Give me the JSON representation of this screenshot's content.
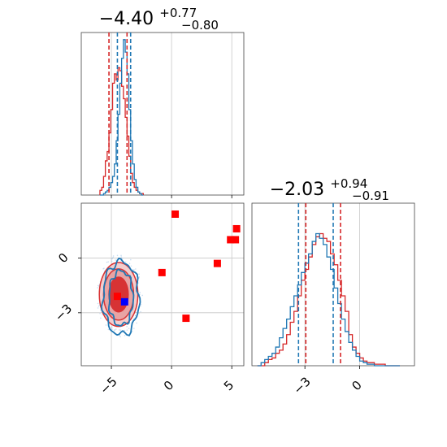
{
  "chart_data": {
    "type": "corner",
    "colors": {
      "red": "#d62728",
      "blue": "#1f77b4",
      "red_fill": "#e8a0a0",
      "pink": "#f3cccc",
      "blue_marker": "#0000ff",
      "red_marker": "#ff0000"
    },
    "grid": true,
    "parameters": [
      {
        "title_main": "−4.40",
        "title_sup": "+0.77",
        "title_sub": "−0.80",
        "range": [
          -7.5,
          6.0
        ],
        "ticks": [
          -5,
          0,
          5
        ],
        "tick_labels": [
          "−5",
          "0",
          "5"
        ],
        "quantiles": {
          "red": [
            -5.2,
            -3.7
          ],
          "blue": [
            -4.5,
            -3.4
          ]
        },
        "hist_bins": [
          -5.95,
          -5.8,
          -5.65,
          -5.5,
          -5.35,
          -5.2,
          -5.05,
          -4.9,
          -4.75,
          -4.6,
          -4.45,
          -4.3,
          -4.15,
          -4.0,
          -3.85,
          -3.7,
          -3.55,
          -3.4,
          -3.25,
          -3.1,
          -2.95,
          -2.8,
          -2.65,
          -2.5,
          -2.35
        ],
        "hist_red": [
          0.03,
          0.05,
          0.12,
          0.22,
          0.28,
          0.4,
          0.55,
          0.72,
          0.78,
          0.74,
          0.82,
          0.8,
          0.7,
          0.62,
          0.5,
          0.38,
          0.25,
          0.14,
          0.08,
          0.05,
          0.03,
          0.02,
          0.01,
          0.01
        ],
        "hist_blue": [
          0.0,
          0.0,
          0.01,
          0.02,
          0.03,
          0.05,
          0.08,
          0.12,
          0.2,
          0.35,
          0.52,
          0.72,
          0.88,
          1.0,
          0.92,
          0.78,
          0.55,
          0.35,
          0.2,
          0.1,
          0.05,
          0.02,
          0.01,
          0.0
        ]
      },
      {
        "title_main": "−2.03",
        "title_sup": "+0.94",
        "title_sub": "−0.91",
        "range": [
          -5.9,
          3.0
        ],
        "ticks": [
          -3,
          0
        ],
        "tick_labels": [
          "−3",
          "0"
        ],
        "quantiles": {
          "red": [
            -2.95,
            -1.05
          ],
          "blue": [
            -3.35,
            -1.45
          ]
        },
        "hist_bins": [
          -5.6,
          -5.4,
          -5.2,
          -5.0,
          -4.8,
          -4.6,
          -4.4,
          -4.2,
          -4.0,
          -3.8,
          -3.6,
          -3.4,
          -3.2,
          -3.0,
          -2.8,
          -2.6,
          -2.4,
          -2.2,
          -2.0,
          -1.8,
          -1.6,
          -1.4,
          -1.2,
          -1.0,
          -0.8,
          -0.6,
          -0.4,
          -0.2,
          0.0,
          0.2,
          0.4,
          0.6,
          0.8,
          1.0,
          1.2,
          1.4,
          1.6,
          1.8,
          2.0,
          2.2
        ],
        "hist_red": [
          0.0,
          0.0,
          0.02,
          0.04,
          0.05,
          0.08,
          0.1,
          0.14,
          0.2,
          0.28,
          0.35,
          0.45,
          0.55,
          0.62,
          0.7,
          0.78,
          0.83,
          0.85,
          0.82,
          0.8,
          0.72,
          0.65,
          0.55,
          0.45,
          0.35,
          0.2,
          0.12,
          0.08,
          0.05,
          0.03,
          0.02,
          0.02,
          0.01,
          0.01,
          0.01,
          0.0,
          0.0,
          0.0,
          0.0
        ],
        "hist_blue": [
          0.0,
          0.02,
          0.04,
          0.06,
          0.08,
          0.12,
          0.18,
          0.24,
          0.3,
          0.38,
          0.45,
          0.52,
          0.6,
          0.66,
          0.72,
          0.8,
          0.85,
          0.82,
          0.78,
          0.7,
          0.62,
          0.5,
          0.4,
          0.3,
          0.22,
          0.15,
          0.1,
          0.06,
          0.03,
          0.02,
          0.01,
          0.01,
          0.0,
          0.0,
          0.0,
          0.0,
          0.0,
          0.0,
          0.0
        ]
      }
    ],
    "joint": {
      "x_range": [
        -7.5,
        6.0
      ],
      "y_range": [
        -5.9,
        3.0
      ],
      "x_ticks": [
        -5,
        0,
        5
      ],
      "x_tick_labels": [
        "−5",
        "0",
        "5"
      ],
      "y_ticks": [
        0,
        -3
      ],
      "y_tick_labels": [
        "0",
        "−3"
      ],
      "red_contours": [
        {
          "cx": -4.4,
          "cy": -2.0,
          "rx": 1.6,
          "ry": 1.75,
          "fill": "#f3cccc"
        },
        {
          "cx": -4.4,
          "cy": -2.0,
          "rx": 1.25,
          "ry": 1.4,
          "fill": "#e8a0a0"
        },
        {
          "cx": -4.4,
          "cy": -2.0,
          "rx": 0.8,
          "ry": 0.95,
          "fill": "#d62728"
        }
      ],
      "blue_contours": [
        {
          "cx": -4.2,
          "cy": -2.2,
          "rx": 1.5,
          "ry": 2.0
        },
        {
          "cx": -4.2,
          "cy": -2.2,
          "rx": 1.0,
          "ry": 1.5
        }
      ],
      "red_points": [
        {
          "x": 0.3,
          "y": 2.4
        },
        {
          "x": 5.4,
          "y": 1.6
        },
        {
          "x": 4.9,
          "y": 1.0
        },
        {
          "x": 5.3,
          "y": 1.0
        },
        {
          "x": 3.8,
          "y": -0.3
        },
        {
          "x": -0.8,
          "y": -0.8
        },
        {
          "x": 1.2,
          "y": -3.3
        },
        {
          "x": -4.5,
          "y": -2.1
        }
      ],
      "blue_points": [
        {
          "x": -3.9,
          "y": -2.4
        }
      ]
    }
  }
}
